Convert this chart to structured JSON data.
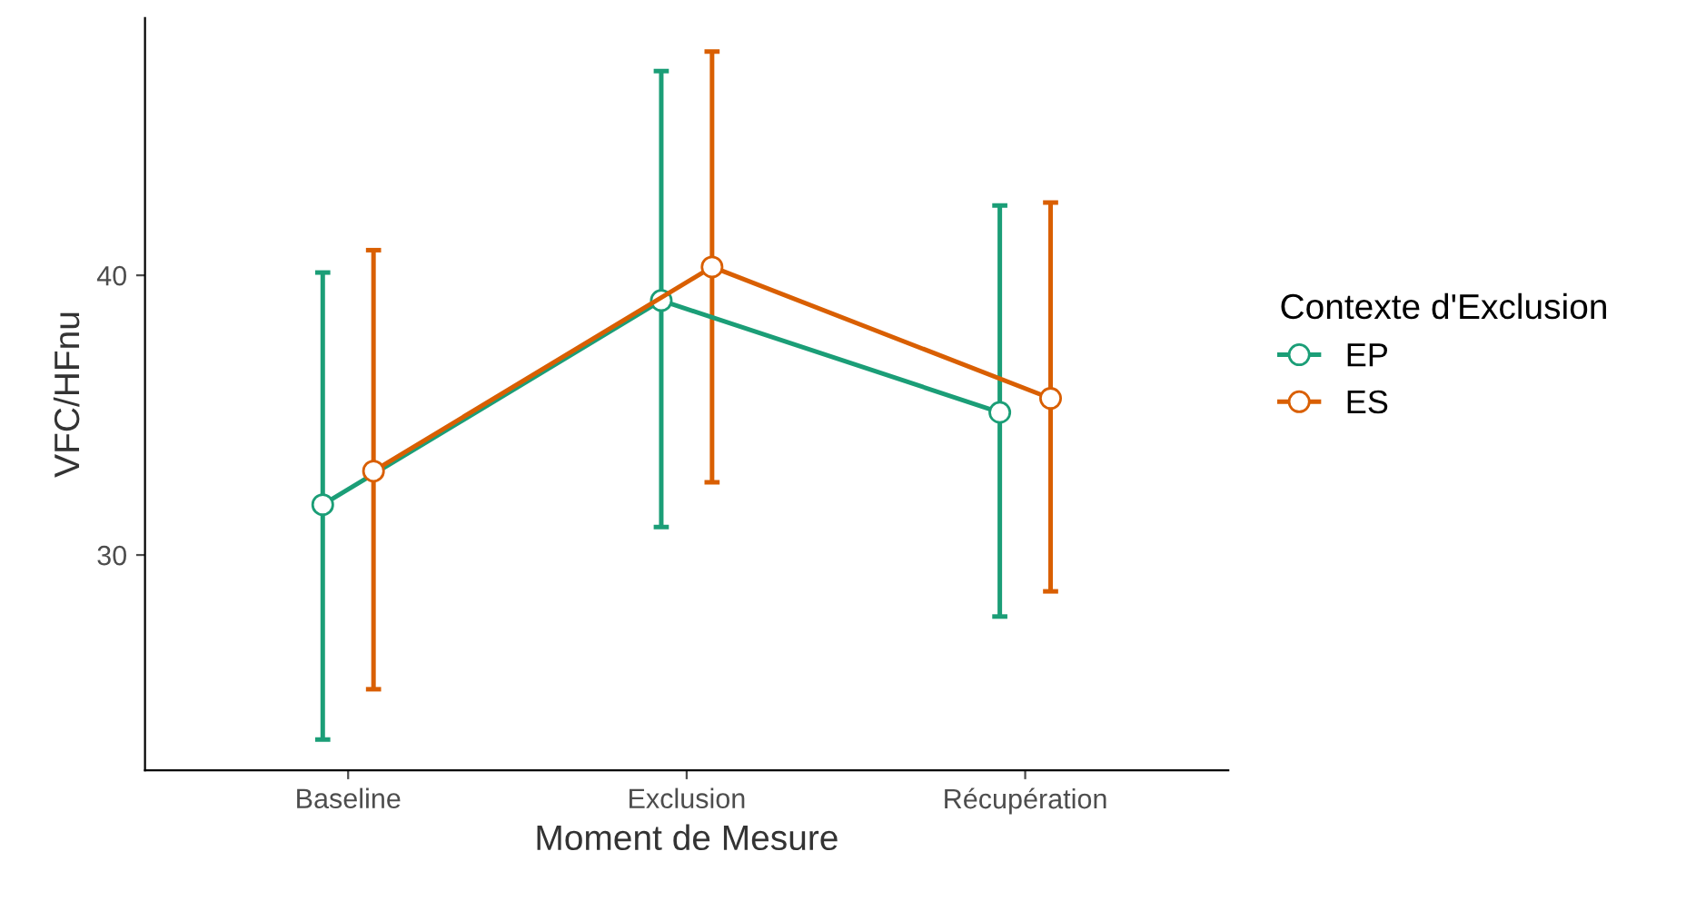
{
  "chart_data": {
    "type": "line",
    "xlabel": "Moment de Mesure",
    "ylabel": "VFC/HFnu",
    "legend_title": "Contexte d'Exclusion",
    "categories": [
      "Baseline",
      "Exclusion",
      "Récupération"
    ],
    "series": [
      {
        "name": "EP",
        "color": "#1b9e77",
        "values": [
          31.8,
          39.1,
          35.1
        ],
        "errors": [
          [
            23.4,
            40.1
          ],
          [
            31.0,
            47.3
          ],
          [
            27.8,
            42.5
          ]
        ]
      },
      {
        "name": "ES",
        "color": "#d95f02",
        "values": [
          33.0,
          40.3,
          35.6
        ],
        "errors": [
          [
            25.2,
            40.9
          ],
          [
            32.6,
            48.0
          ],
          [
            28.7,
            42.6
          ]
        ]
      }
    ],
    "ylim": [
      22.3,
      49.2
    ],
    "yticks": [
      30,
      40
    ],
    "grid": false,
    "legend": "right",
    "marker": "circle",
    "line_style": "solid"
  }
}
